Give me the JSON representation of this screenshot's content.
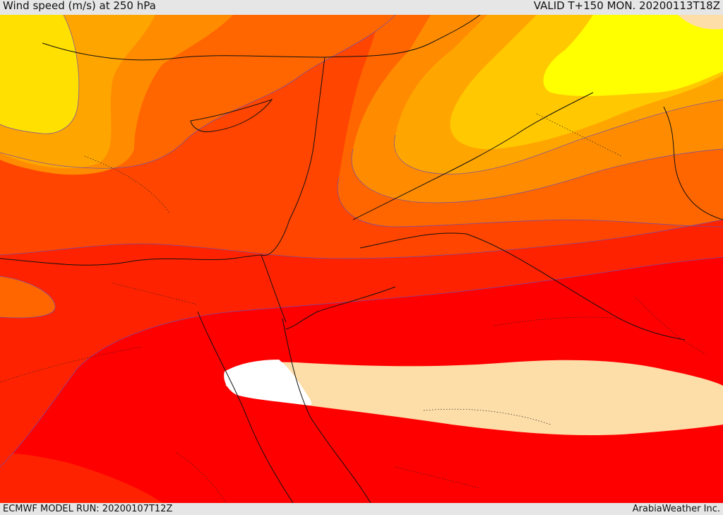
{
  "header": {
    "title": "Wind speed (m/s) at 250 hPa",
    "valid_time": "VALID T+150 MON. 20200113T18Z"
  },
  "footer": {
    "model_run": "ECMWF MODEL RUN: 20200107T12Z",
    "credit": "ArabiaWeather Inc."
  },
  "colors": {
    "yellow": "#ffff00",
    "light_yellow": "#ffe000",
    "gold": "#ffc800",
    "amber": "#ffa500",
    "orange": "#ff8c00",
    "dark_orange": "#ff6600",
    "orange_red": "#ff4500",
    "red_orange": "#ff2200",
    "red": "#ff0000",
    "wheat": "#fddda8",
    "white": "#ffffff"
  }
}
